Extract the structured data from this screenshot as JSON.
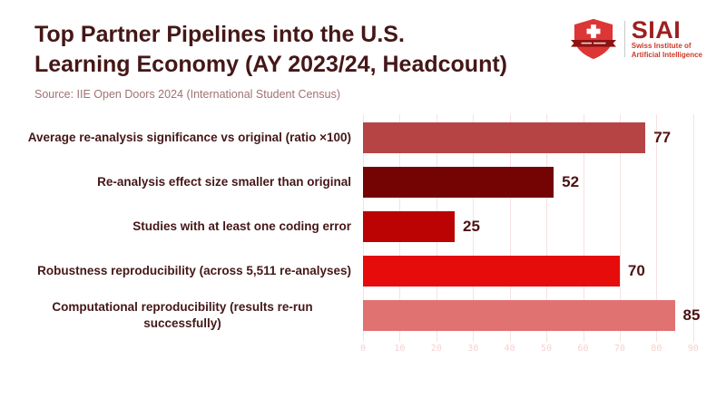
{
  "header": {
    "title_lines": [
      "Top Partner Pipelines into the U.S.",
      "Learning Economy (AY 2023/24, Headcount)"
    ],
    "source": "Source: IIE Open Doors 2024 (International Student Census)"
  },
  "logo": {
    "name": "SIAI",
    "tagline_lines": [
      "Swiss Institute of",
      "Artificial Intelligence"
    ],
    "shield_red": "#dd3636",
    "banner_dark_red": "#8e1212",
    "name_color": "#9e1f1f",
    "tagline_color": "#cc3b2b"
  },
  "colors": {
    "background": "#ffffff",
    "title_text": "#451717",
    "source_text": "#a07272",
    "value_label": "#4d1212",
    "gridline": "#f6e2e2",
    "tick_label": "#f8d0d0"
  },
  "chart_data": {
    "type": "bar",
    "orientation": "horizontal",
    "title": "Top Partner Pipelines into the U.S. Learning Economy (AY 2023/24, Headcount)",
    "subtitle": "Source: IIE Open Doors 2024 (International Student Census)",
    "categories": [
      "Average re-analysis significance vs original (ratio ×100)",
      "Re-analysis effect size smaller than original",
      "Studies with at least one coding error",
      "Robustness reproducibility (across 5,511 re-analyses)",
      "Computational reproducibility (results re-run successfully)"
    ],
    "values": [
      77,
      52,
      25,
      70,
      85
    ],
    "bar_colors": [
      "#b64444",
      "#740404",
      "#bb0303",
      "#e60c0c",
      "#e07272"
    ],
    "value_labels": [
      77,
      52,
      25,
      70,
      85
    ],
    "xlabel": "",
    "ylabel": "",
    "xlim": [
      0,
      96
    ],
    "x_ticks": [
      0,
      10,
      20,
      30,
      40,
      50,
      60,
      70,
      80,
      90
    ],
    "grid": true,
    "legend_position": "none"
  }
}
